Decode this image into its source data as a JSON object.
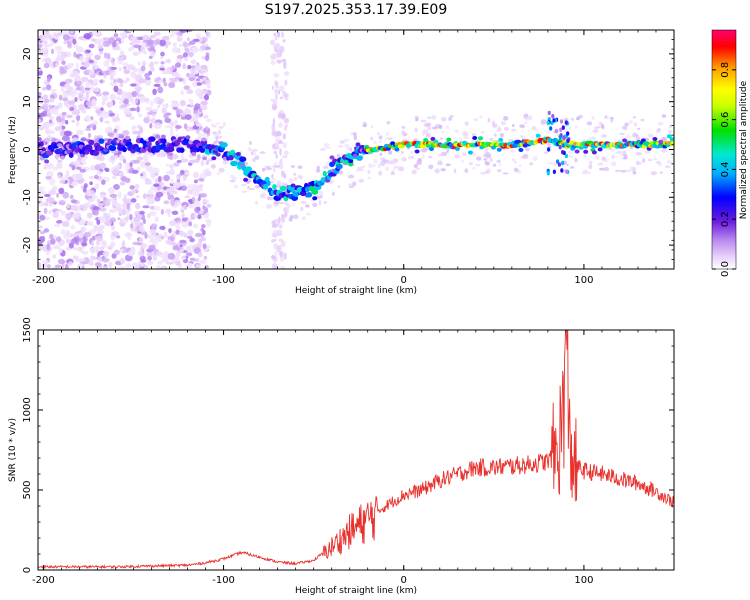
{
  "title": "S197.2025.353.17.39.E09",
  "chart_data": [
    {
      "type": "heatmap",
      "name": "spectrogram",
      "xlabel": "Height of straight line (km)",
      "ylabel": "Frequency (Hz)",
      "xlim": [
        -203,
        150
      ],
      "ylim": [
        -25,
        25
      ],
      "xticks": [
        -200,
        -100,
        0,
        100
      ],
      "yticks": [
        -20,
        -10,
        0,
        10,
        20
      ],
      "colorbar": {
        "label": "Normalized spectral amplitude",
        "range": [
          0,
          0.96
        ],
        "ticks": [
          "0.0",
          "0.2",
          "0.4",
          "0.6",
          "0.8"
        ],
        "colors": [
          "#ffffff",
          "#e9d2fb",
          "#b98af0",
          "#6a1be0",
          "#0000ff",
          "#00b0ff",
          "#00e8d0",
          "#00e000",
          "#c8ff00",
          "#ffff00",
          "#ffa000",
          "#ff0000",
          "#ff0070"
        ]
      },
      "ridge": [
        {
          "x": -200,
          "y": 0
        },
        {
          "x": -180,
          "y": 0
        },
        {
          "x": -160,
          "y": 1
        },
        {
          "x": -140,
          "y": 1
        },
        {
          "x": -120,
          "y": 1
        },
        {
          "x": -100,
          "y": 0
        },
        {
          "x": -90,
          "y": -3
        },
        {
          "x": -80,
          "y": -6
        },
        {
          "x": -70,
          "y": -9
        },
        {
          "x": -60,
          "y": -9
        },
        {
          "x": -50,
          "y": -8
        },
        {
          "x": -40,
          "y": -4
        },
        {
          "x": -30,
          "y": -2
        },
        {
          "x": -20,
          "y": 0
        },
        {
          "x": 0,
          "y": 1
        },
        {
          "x": 20,
          "y": 1
        },
        {
          "x": 40,
          "y": 1
        },
        {
          "x": 60,
          "y": 1
        },
        {
          "x": 80,
          "y": 2
        },
        {
          "x": 90,
          "y": 1
        },
        {
          "x": 100,
          "y": 1
        },
        {
          "x": 120,
          "y": 1
        },
        {
          "x": 150,
          "y": 1
        }
      ]
    },
    {
      "type": "line",
      "name": "snr",
      "xlabel": "Height of straight line (km)",
      "ylabel": "SNR (10 * v/v)",
      "xlim": [
        -203,
        150
      ],
      "ylim": [
        0,
        1500
      ],
      "xticks": [
        -200,
        -100,
        0,
        100
      ],
      "yticks": [
        0,
        500,
        1000,
        1500
      ],
      "color": "#e8322e",
      "series": [
        {
          "name": "SNR",
          "x": [
            -203,
            -180,
            -160,
            -140,
            -120,
            -110,
            -100,
            -90,
            -80,
            -70,
            -60,
            -50,
            -40,
            -30,
            -20,
            -10,
            0,
            10,
            20,
            30,
            40,
            50,
            60,
            70,
            80,
            85,
            88,
            90,
            92,
            95,
            100,
            110,
            120,
            130,
            140,
            150
          ],
          "y": [
            20,
            20,
            20,
            25,
            30,
            45,
            70,
            110,
            80,
            50,
            40,
            60,
            150,
            250,
            330,
            400,
            470,
            500,
            560,
            600,
            640,
            640,
            650,
            660,
            680,
            730,
            900,
            1500,
            800,
            650,
            620,
            600,
            570,
            540,
            490,
            420
          ]
        }
      ]
    }
  ]
}
